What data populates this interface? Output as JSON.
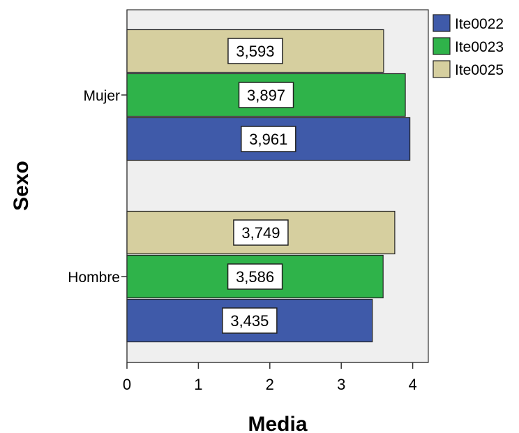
{
  "chart_data": {
    "type": "bar",
    "orientation": "horizontal",
    "categories": [
      "Mujer",
      "Hombre"
    ],
    "series": [
      {
        "name": "Ite0022",
        "color": "#3f5aa9",
        "values": [
          3.961,
          3.435
        ],
        "labels": [
          "3,961",
          "3,435"
        ]
      },
      {
        "name": "Ite0023",
        "color": "#2fb34a",
        "values": [
          3.897,
          3.586
        ],
        "labels": [
          "3,897",
          "3,586"
        ]
      },
      {
        "name": "Ite0025",
        "color": "#d6cf9f",
        "values": [
          3.593,
          3.749
        ],
        "labels": [
          "3,593",
          "3,749"
        ]
      }
    ],
    "xlabel": "Media",
    "ylabel": "Sexo",
    "xlim": [
      0,
      4.2
    ],
    "xticks": [
      0,
      1,
      2,
      3,
      4
    ],
    "grid": false,
    "plot_background": "#efefef",
    "legend_position": "top-right"
  }
}
